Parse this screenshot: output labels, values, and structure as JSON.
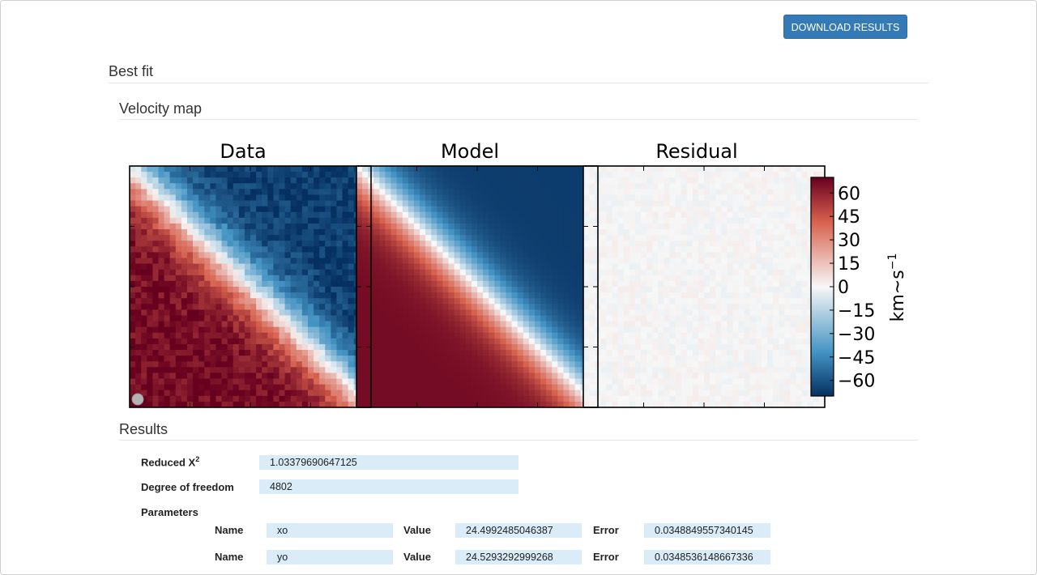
{
  "toolbar": {
    "download_label": "DOWNLOAD RESULTS"
  },
  "sections": {
    "best_fit": "Best fit",
    "velocity_map": "Velocity map",
    "results": "Results"
  },
  "figure": {
    "panels": [
      "Data",
      "Model",
      "Residual"
    ],
    "colorbar": {
      "ticks": [
        "60",
        "45",
        "30",
        "15",
        "0",
        "−15",
        "−30",
        "−45",
        "−60"
      ],
      "label": "km~s",
      "label_exp": "−1",
      "range": [
        -70,
        70
      ],
      "colormap": "RdBu_r",
      "colors": {
        "max": "#67001f",
        "high": "#d6604d",
        "mid": "#f7f7f7",
        "low": "#4393c3",
        "min": "#053061"
      }
    }
  },
  "results": {
    "reduced_chi2_label": "Reduced X",
    "reduced_chi2_sup": "2",
    "reduced_chi2_value": "1.03379690647125",
    "dof_label": "Degree of freedom",
    "dof_value": "4802",
    "parameters_label": "Parameters",
    "params": [
      {
        "name_label": "Name",
        "name": "xo",
        "value_label": "Value",
        "value": "24.4992485046387",
        "error_label": "Error",
        "error": "0.0348849557340145"
      },
      {
        "name_label": "Name",
        "name": "yo",
        "value_label": "Value",
        "value": "24.5293292999268",
        "error_label": "Error",
        "error": "0.0348536148667336"
      }
    ]
  }
}
